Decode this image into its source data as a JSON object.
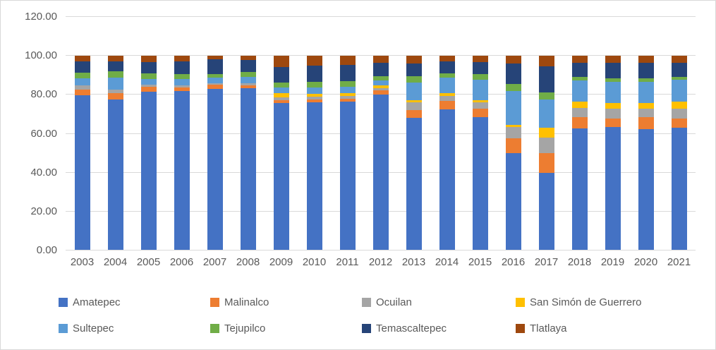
{
  "chart_data": {
    "type": "bar",
    "stacked": true,
    "stacked_100_percent": true,
    "title": "",
    "xlabel": "",
    "ylabel": "",
    "categories": [
      "2003",
      "2004",
      "2005",
      "2006",
      "2007",
      "2008",
      "2009",
      "2010",
      "2011",
      "2012",
      "2013",
      "2014",
      "2015",
      "2016",
      "2017",
      "2018",
      "2019",
      "2020",
      "2021"
    ],
    "series": [
      {
        "name": "Amatepec",
        "color": "#4472C4",
        "values": [
          79.5,
          77.5,
          81.5,
          81.6,
          82.7,
          83.2,
          75.5,
          75.9,
          76.2,
          80.1,
          67.8,
          72.3,
          68.4,
          49.9,
          39.6,
          62.7,
          63.4,
          62.2,
          62.8
        ]
      },
      {
        "name": "Malinalco",
        "color": "#ED7D31",
        "values": [
          3.1,
          3.1,
          2.5,
          2.1,
          2.2,
          1.5,
          1.6,
          1.6,
          1.7,
          1.9,
          4.3,
          4.2,
          4.3,
          7.6,
          10.4,
          5.5,
          4.3,
          6.1,
          4.9
        ]
      },
      {
        "name": "Ocuilan",
        "color": "#A5A5A5",
        "values": [
          1.9,
          1.9,
          1.0,
          0.9,
          1.0,
          1.2,
          1.5,
          1.2,
          1.2,
          1.2,
          3.7,
          2.8,
          3.4,
          5.8,
          7.9,
          4.9,
          4.9,
          4.3,
          4.9
        ]
      },
      {
        "name": "San Simón de Guerrero",
        "color": "#FFC000",
        "values": [
          0,
          0,
          0,
          0,
          0,
          0,
          1.9,
          1.5,
          1.6,
          1.6,
          1.2,
          1.2,
          0.9,
          1.2,
          4.9,
          3.1,
          3.0,
          3.0,
          3.6
        ]
      },
      {
        "name": "Sultepec",
        "color": "#5B9BD5",
        "values": [
          3.7,
          6.2,
          2.8,
          3.2,
          2.7,
          3.1,
          3.1,
          3.5,
          3.1,
          2.5,
          9.2,
          8.2,
          10.4,
          17.4,
          14.6,
          10.9,
          11.0,
          11.0,
          11.3
        ]
      },
      {
        "name": "Tejupilco",
        "color": "#70AD47",
        "values": [
          3.1,
          3.1,
          3.1,
          2.7,
          1.9,
          2.5,
          2.5,
          2.7,
          3.1,
          2.1,
          3.1,
          2.2,
          3.1,
          3.4,
          3.7,
          1.9,
          1.8,
          1.8,
          1.5
        ]
      },
      {
        "name": "Temascaltepec",
        "color": "#264478",
        "values": [
          5.6,
          5.2,
          5.8,
          6.5,
          7.4,
          6.3,
          7.9,
          8.5,
          8.2,
          6.7,
          6.7,
          6.1,
          6.2,
          10.5,
          13.4,
          7.3,
          7.9,
          7.9,
          7.3
        ]
      },
      {
        "name": "Tlatlaya",
        "color": "#9E480E",
        "values": [
          3.1,
          3.0,
          3.3,
          3.0,
          2.1,
          2.2,
          6.0,
          5.1,
          4.9,
          3.9,
          4.0,
          3.0,
          3.3,
          4.2,
          5.5,
          3.7,
          3.7,
          3.7,
          3.7
        ]
      }
    ],
    "ylim": [
      0,
      120
    ],
    "yticks": [
      {
        "value": 0,
        "label": "0.00"
      },
      {
        "value": 20,
        "label": "20.00"
      },
      {
        "value": 40,
        "label": "40.00"
      },
      {
        "value": 60,
        "label": "60.00"
      },
      {
        "value": 80,
        "label": "80.00"
      },
      {
        "value": 100,
        "label": "100.00"
      },
      {
        "value": 120,
        "label": "120.00"
      }
    ],
    "grid": true,
    "legend_position": "bottom"
  },
  "colors": {
    "axis_text": "#595959",
    "gridline": "#D9D9D9",
    "chart_border": "#D9D9D9",
    "background": "#FFFFFF"
  }
}
